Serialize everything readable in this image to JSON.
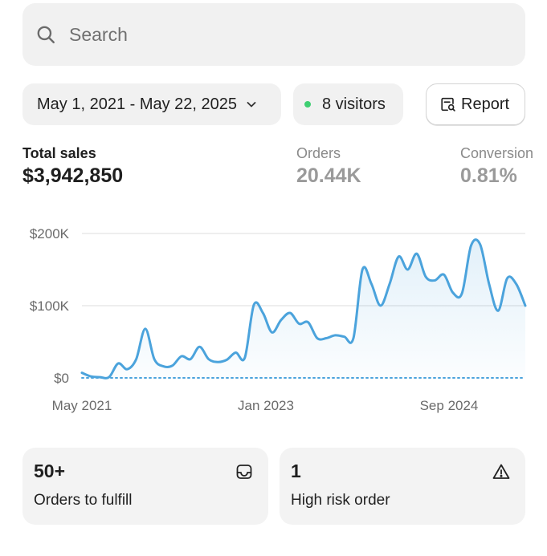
{
  "search": {
    "placeholder": "Search",
    "icon": "search-icon"
  },
  "filters": {
    "date_range": "May 1, 2021 - May 22, 2025",
    "visitors": "8 visitors",
    "visitors_dot_color": "#3fcf72",
    "report_label": "Report"
  },
  "metrics": [
    {
      "label": "Total sales",
      "value": "$3,942,850"
    },
    {
      "label": "Orders",
      "value": "20.44K"
    },
    {
      "label": "Conversion",
      "value": "0.81%"
    }
  ],
  "chart_data": {
    "type": "area",
    "y_ticks": [
      "$200K",
      "$100K",
      "$0"
    ],
    "x_ticks": [
      "May 2021",
      "Jan 2023",
      "Sep 2024"
    ],
    "ylim": [
      0,
      200000
    ],
    "line_color": "#4ba3dc",
    "grid": true,
    "series": [
      {
        "values": [
          7000,
          2000,
          1000,
          1000,
          20000,
          12000,
          26000,
          68000,
          26000,
          16000,
          17000,
          30000,
          26000,
          43000,
          26000,
          22000,
          25000,
          35000,
          28000,
          101000,
          90000,
          63000,
          80000,
          90000,
          75000,
          77000,
          55000,
          55000,
          59000,
          57000,
          55000,
          150000,
          130000,
          100000,
          130000,
          168000,
          150000,
          172000,
          140000,
          135000,
          143000,
          118000,
          117000,
          183000,
          185000,
          130000,
          93000,
          138000,
          130000,
          100000
        ]
      },
      {
        "values": [
          0,
          0,
          0,
          0,
          0,
          0,
          0,
          0,
          0,
          0,
          0,
          0,
          0,
          0,
          0,
          0,
          0,
          0,
          0,
          0,
          0,
          0,
          0,
          0,
          0,
          0,
          0,
          0,
          0,
          0,
          0,
          0,
          0,
          0,
          0,
          0,
          0,
          0,
          0,
          0,
          0,
          0,
          0,
          0,
          0,
          0,
          0,
          0,
          0,
          0
        ]
      }
    ]
  },
  "cards": [
    {
      "count": "50+",
      "label": "Orders to fulfill",
      "icon": "inbox-icon"
    },
    {
      "count": "1",
      "label": "High risk order",
      "icon": "warning-icon"
    }
  ]
}
